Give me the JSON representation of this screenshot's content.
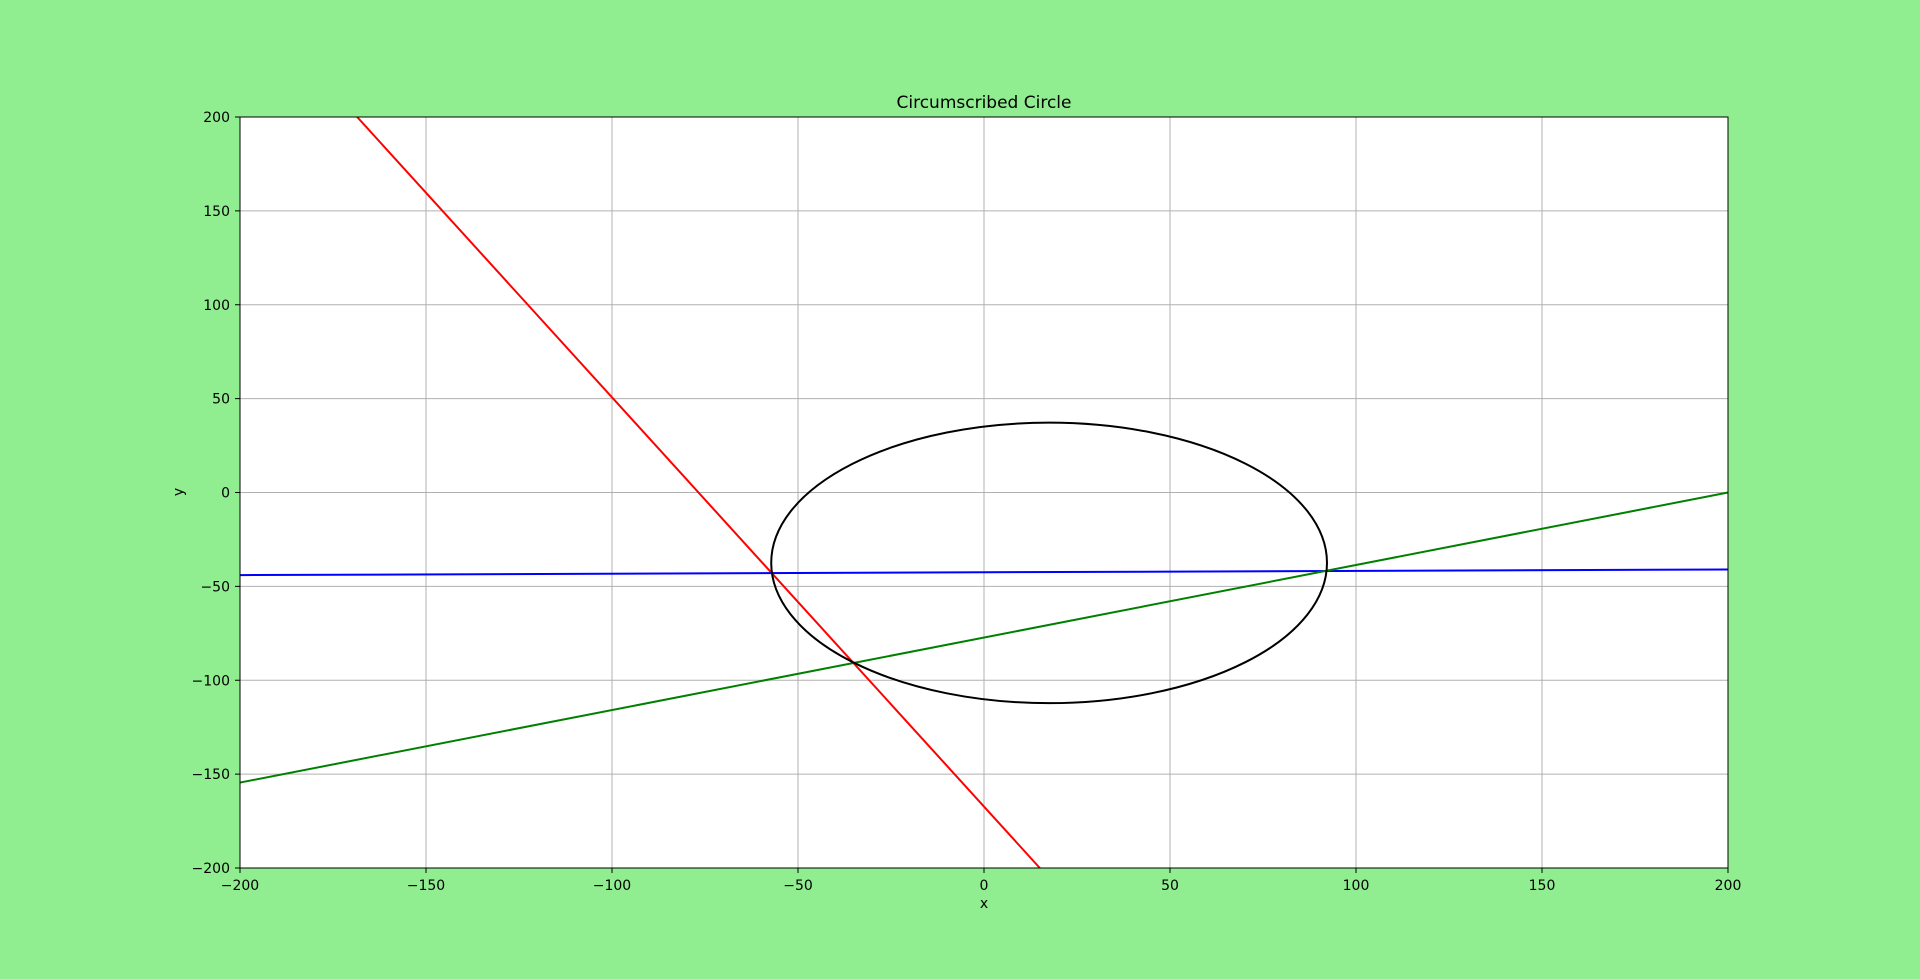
{
  "chart_data": {
    "type": "line",
    "title": "Circumscribed Circle",
    "xlabel": "x",
    "ylabel": "y",
    "xlim": [
      -200,
      200
    ],
    "ylim": [
      -200,
      200
    ],
    "grid": true,
    "xticks": [
      -200,
      -150,
      -100,
      -50,
      0,
      50,
      100,
      150,
      200
    ],
    "yticks": [
      -200,
      -150,
      -100,
      -50,
      0,
      50,
      100,
      150,
      200
    ],
    "colors": {
      "background": "#90ee90",
      "plot_area": "#ffffff",
      "grid": "#b0b0b0"
    },
    "series": [
      {
        "kind": "line",
        "color": "#ff0000",
        "x": [
          -168.5,
          15
        ],
        "y": [
          200,
          -200
        ]
      },
      {
        "kind": "line",
        "color": "#0000ff",
        "x": [
          -200,
          200
        ],
        "y": [
          -44,
          -41
        ]
      },
      {
        "kind": "line",
        "color": "#008000",
        "x": [
          -200,
          200
        ],
        "y": [
          -154.5,
          0
        ]
      },
      {
        "kind": "circle",
        "color": "#000000",
        "center": [
          17.5,
          -37.5
        ],
        "radius": 74.7
      }
    ]
  }
}
